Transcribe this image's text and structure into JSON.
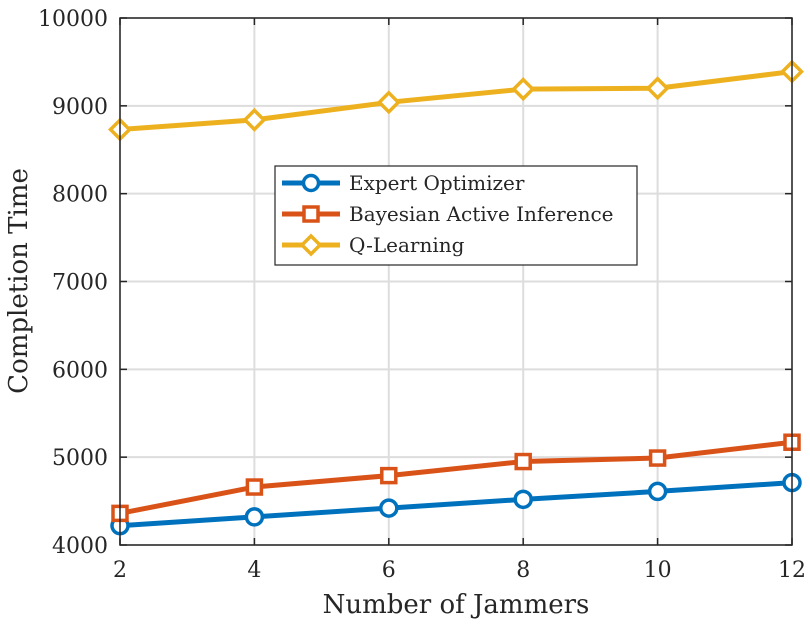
{
  "chart_data": {
    "type": "line",
    "title": "",
    "xlabel": "Number of Jammers",
    "ylabel": "Completion Time",
    "x": [
      2,
      4,
      6,
      8,
      10,
      12
    ],
    "xlim": [
      2,
      12
    ],
    "ylim": [
      4000,
      10000
    ],
    "xticks": [
      "2",
      "4",
      "6",
      "8",
      "10",
      "12"
    ],
    "yticks": [
      "4000",
      "5000",
      "6000",
      "7000",
      "8000",
      "9000",
      "10000"
    ],
    "grid": true,
    "legend_position": "center",
    "series": [
      {
        "name": "Expert Optimizer",
        "color": "#0072BD",
        "marker": "circle",
        "values": [
          4220,
          4320,
          4420,
          4520,
          4610,
          4710
        ]
      },
      {
        "name": "Bayesian Active Inference",
        "color": "#D95319",
        "marker": "square",
        "values": [
          4360,
          4660,
          4790,
          4950,
          4990,
          5170
        ]
      },
      {
        "name": "Q-Learning",
        "color": "#EDB120",
        "marker": "diamond",
        "values": [
          8730,
          8840,
          9040,
          9190,
          9200,
          9390
        ]
      }
    ]
  }
}
